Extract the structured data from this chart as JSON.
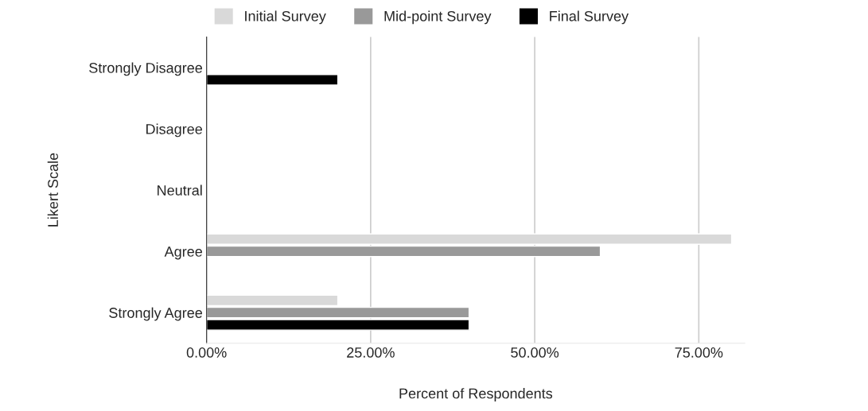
{
  "chart_data": {
    "type": "bar",
    "orientation": "horizontal",
    "categories": [
      "Strongly Disagree",
      "Disagree",
      "Neutral",
      "Agree",
      "Strongly Agree"
    ],
    "series": [
      {
        "name": "Initial Survey",
        "color": "#d9d9d9",
        "values": [
          null,
          null,
          null,
          80,
          20
        ]
      },
      {
        "name": "Mid-point Survey",
        "color": "#999999",
        "values": [
          null,
          null,
          null,
          60,
          40
        ]
      },
      {
        "name": "Final Survey",
        "color": "#000000",
        "values": [
          20,
          null,
          null,
          null,
          40
        ]
      }
    ],
    "xlabel": "Percent of Respondents",
    "ylabel": "Likert Scale",
    "xlim": [
      0,
      82
    ],
    "xticks": [
      {
        "value": 0,
        "label": "0.00%"
      },
      {
        "value": 25,
        "label": "25.00%"
      },
      {
        "value": 50,
        "label": "50.00%"
      },
      {
        "value": 75,
        "label": "75.00%"
      }
    ],
    "grid": "x",
    "legend": "top"
  }
}
